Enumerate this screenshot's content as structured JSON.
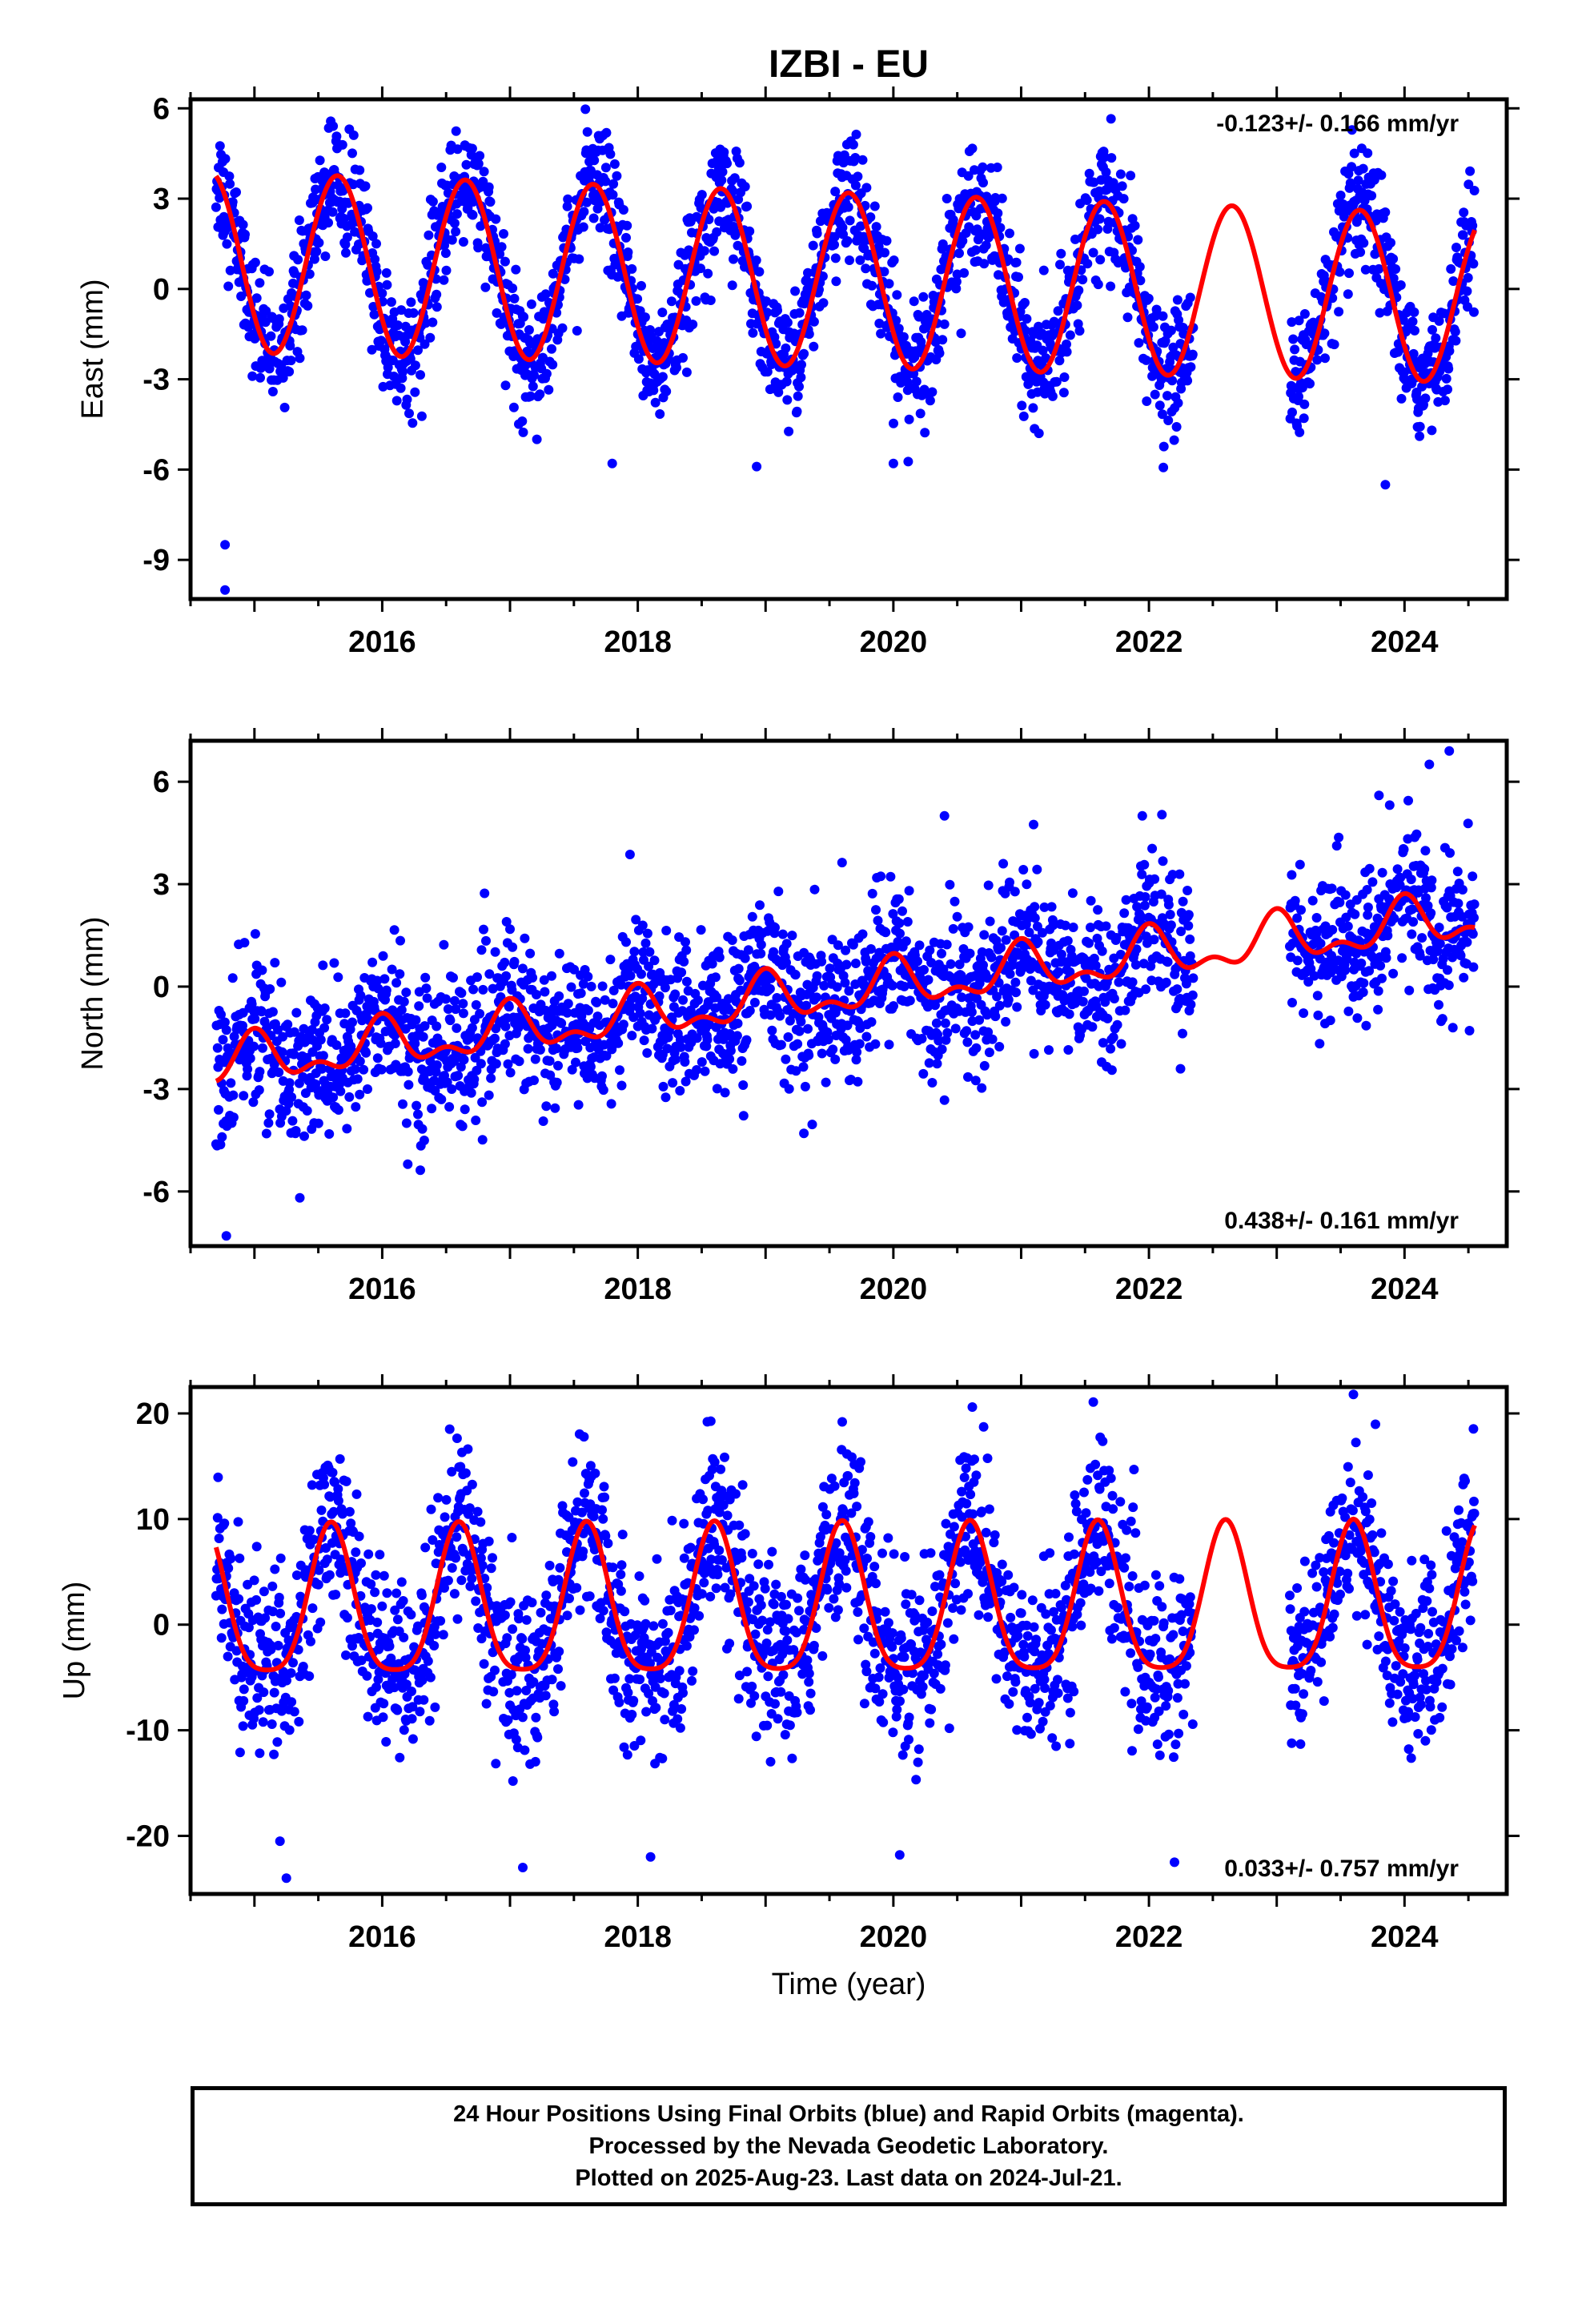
{
  "title": "IZBI - EU",
  "xlabel": "Time (year)",
  "footer": {
    "line1": "24 Hour Positions Using Final Orbits (blue) and Rapid Orbits (magenta).",
    "line2": "Processed by the Nevada Geodetic Laboratory.",
    "line3": "Plotted on 2025-Aug-23. Last data on 2024-Jul-21."
  },
  "colors": {
    "points": "#0000ff",
    "fit": "#ff0000",
    "axes": "#000000"
  },
  "chart_data": [
    {
      "type": "scatter",
      "ylabel": "East (mm)",
      "xlim": [
        2014.5,
        2024.8
      ],
      "ylim": [
        -10.3,
        6.3
      ],
      "xticks": [
        2016,
        2018,
        2020,
        2022,
        2024
      ],
      "yticks": [
        -9,
        -6,
        -3,
        0,
        3,
        6
      ],
      "annotation": "-0.123+/- 0.166 mm/yr",
      "annotation_position": "top-right",
      "data_start": 2014.7,
      "data_end": 2024.55,
      "gaps": [
        [
          2022.35,
          2023.1
        ]
      ],
      "fit": {
        "offset": 0.9,
        "rate": -0.123,
        "amplitude": 3.0,
        "phase_year": 0.65,
        "amplitude_growth": -0.02
      },
      "scatter_sigma": 1.0,
      "outliers": [
        [
          2014.77,
          -8.5
        ],
        [
          2014.77,
          -10.0
        ],
        [
          2023.85,
          -6.5
        ],
        [
          2018.93,
          -5.9
        ],
        [
          2017.8,
          -5.8
        ],
        [
          2020.0,
          -5.8
        ]
      ]
    },
    {
      "type": "scatter",
      "ylabel": "North (mm)",
      "xlim": [
        2014.5,
        2024.8
      ],
      "ylim": [
        -7.6,
        7.2
      ],
      "xticks": [
        2016,
        2018,
        2020,
        2022,
        2024
      ],
      "yticks": [
        -6,
        -3,
        0,
        3,
        6
      ],
      "annotation": "0.438+/- 0.161 mm/yr",
      "annotation_position": "bottom-right",
      "data_start": 2014.7,
      "data_end": 2024.55,
      "gaps": [
        [
          2022.35,
          2023.1
        ]
      ],
      "fit": {
        "offset": -2.3,
        "rate": 0.438,
        "amplitude": 0.6,
        "phase_year": 0.0,
        "semiannual": 0.35
      },
      "scatter_sigma": 1.1,
      "outliers": [
        [
          2014.78,
          -7.3
        ],
        [
          2024.35,
          6.9
        ],
        [
          2020.4,
          5.0
        ],
        [
          2023.8,
          5.6
        ],
        [
          2016.2,
          -5.2
        ],
        [
          2019.3,
          -4.3
        ]
      ]
    },
    {
      "type": "scatter",
      "ylabel": "Up (mm)",
      "xlim": [
        2014.5,
        2024.8
      ],
      "ylim": [
        -25.5,
        22.5
      ],
      "xticks": [
        2016,
        2018,
        2020,
        2022,
        2024
      ],
      "yticks": [
        -20,
        -10,
        0,
        10,
        20
      ],
      "annotation": "0.033+/- 0.757 mm/yr",
      "annotation_position": "bottom-right",
      "data_start": 2014.7,
      "data_end": 2024.55,
      "gaps": [
        [
          2022.35,
          2023.1
        ]
      ],
      "fit": {
        "offset": 1.2,
        "rate": 0.033,
        "amplitude": 7.0,
        "phase_year": 0.6,
        "semiannual": 1.5
      },
      "scatter_sigma": 4.2,
      "outliers": [
        [
          2015.25,
          -24.0
        ],
        [
          2023.6,
          21.8
        ],
        [
          2022.2,
          -22.5
        ],
        [
          2018.1,
          -22.0
        ],
        [
          2017.1,
          -23.0
        ],
        [
          2019.6,
          19.2
        ],
        [
          2015.2,
          -20.5
        ],
        [
          2020.05,
          -21.8
        ]
      ]
    }
  ]
}
